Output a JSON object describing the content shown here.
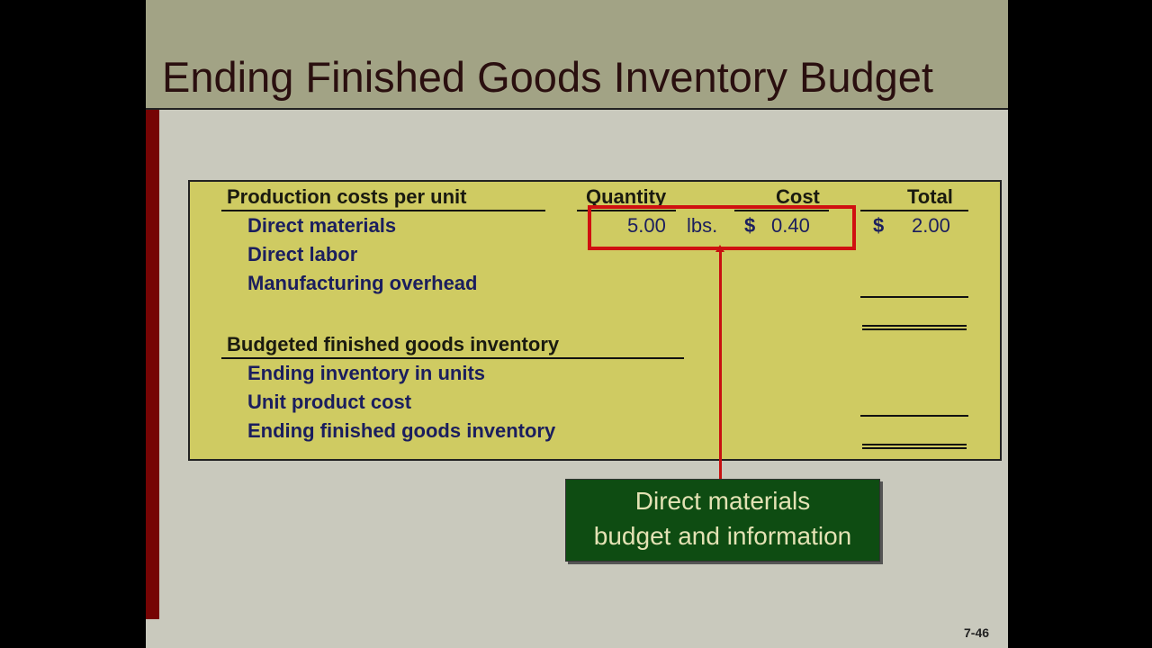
{
  "title": "Ending Finished Goods Inventory Budget",
  "table": {
    "section1_header": "Production costs per unit",
    "columns": [
      "Quantity",
      "Cost",
      "Total"
    ],
    "rows": [
      {
        "label": "Direct materials",
        "quantity": "5.00",
        "unit": "lbs.",
        "cost_symbol": "$",
        "cost": "0.40",
        "total_symbol": "$",
        "total": "2.00"
      },
      {
        "label": "Direct labor"
      },
      {
        "label": "Manufacturing overhead"
      }
    ],
    "section2_header": "Budgeted finished goods inventory",
    "rows2": [
      {
        "label": "Ending inventory in units"
      },
      {
        "label": "Unit product cost"
      },
      {
        "label": "Ending finished goods inventory"
      }
    ]
  },
  "callout": {
    "line1": "Direct materials",
    "line2": "budget and information"
  },
  "page_number": "7-46",
  "colors": {
    "title_band": "#a2a385",
    "table_bg": "#cfcb62",
    "highlight": "#d01010",
    "callout_bg": "#0e4c12",
    "accent_strip": "#760404"
  }
}
